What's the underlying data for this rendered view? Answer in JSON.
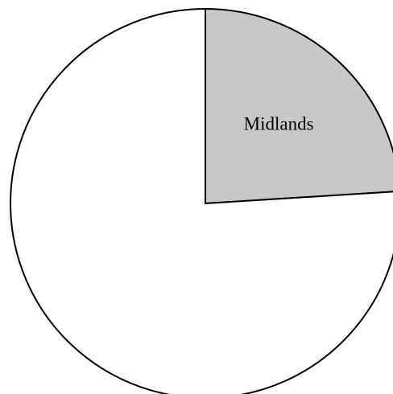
{
  "chart_data": {
    "type": "pie",
    "categories": [
      "Midlands",
      null
    ],
    "values": [
      24,
      76
    ],
    "colors": [
      "#c8c8c8",
      "#ffffff"
    ]
  }
}
